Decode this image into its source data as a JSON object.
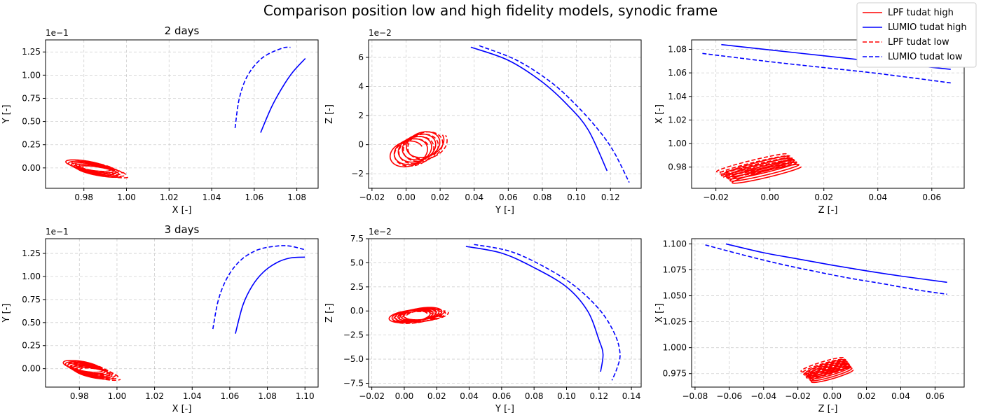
{
  "figure": {
    "title": "Comparison position low and high fidelity models, synodic frame"
  },
  "legend": {
    "placement": "top-right",
    "entries": [
      {
        "label": "LPF tudat high",
        "color": "#ff0000",
        "style": "solid"
      },
      {
        "label": "LUMIO tudat high",
        "color": "#0000ff",
        "style": "solid"
      },
      {
        "label": "LPF tudat low",
        "color": "#ff0000",
        "style": "dashed"
      },
      {
        "label": "LUMIO tudat low",
        "color": "#0000ff",
        "style": "dashed"
      }
    ]
  },
  "chart_data": [
    {
      "type": "line",
      "title": "2 days",
      "xlabel": "X [-]",
      "ylabel": "Y [-]",
      "offset_text": "1e−1",
      "grid": true,
      "xlim": [
        0.962,
        1.09
      ],
      "ylim": [
        -0.022,
        0.138
      ],
      "xticks": [
        0.98,
        1.0,
        1.02,
        1.04,
        1.06,
        1.08
      ],
      "xtick_labels": [
        "0.98",
        "1.00",
        "1.02",
        "1.04",
        "1.06",
        "1.08"
      ],
      "yticks": [
        0.0,
        0.025,
        0.05,
        0.075,
        0.1,
        0.125
      ],
      "ytick_labels": [
        "0.00",
        "0.25",
        "0.50",
        "0.75",
        "1.00",
        "1.25"
      ],
      "series": [
        {
          "name": "LUMIO tudat high",
          "color": "#0000ff",
          "style": "solid",
          "points": [
            [
              1.063,
              0.038
            ],
            [
              1.068,
              0.065
            ],
            [
              1.073,
              0.086
            ],
            [
              1.078,
              0.103
            ],
            [
              1.084,
              0.118
            ]
          ]
        },
        {
          "name": "LUMIO tudat low",
          "color": "#0000ff",
          "style": "dashed",
          "points": [
            [
              1.051,
              0.043
            ],
            [
              1.053,
              0.075
            ],
            [
              1.057,
              0.1
            ],
            [
              1.064,
              0.119
            ],
            [
              1.073,
              0.129
            ],
            [
              1.077,
              0.13
            ]
          ]
        },
        {
          "name": "LPF tudat high",
          "color": "#ff0000",
          "style": "solid",
          "kind": "orbit",
          "orbit": {
            "cx": 0.981,
            "cy": 0.0035,
            "a": 0.011,
            "b": 0.004,
            "rot": -0.42,
            "loops": 5,
            "drift": [
              0.0013,
              -0.0016
            ]
          }
        },
        {
          "name": "LPF tudat low",
          "color": "#ff0000",
          "style": "dashed",
          "kind": "orbit",
          "orbit": {
            "cx": 0.984,
            "cy": 0.002,
            "a": 0.0115,
            "b": 0.0038,
            "rot": -0.45,
            "loops": 4,
            "drift": [
              0.0017,
              -0.0017
            ]
          }
        }
      ]
    },
    {
      "type": "line",
      "title": "",
      "xlabel": "Y [-]",
      "ylabel": "Z [-]",
      "offset_text": "1e−2",
      "grid": true,
      "xlim": [
        -0.022,
        0.138
      ],
      "ylim": [
        -0.03,
        0.072
      ],
      "xticks": [
        -0.02,
        0.0,
        0.02,
        0.04,
        0.06,
        0.08,
        0.1,
        0.12
      ],
      "xtick_labels": [
        "−0.02",
        "0.00",
        "0.02",
        "0.04",
        "0.06",
        "0.08",
        "0.10",
        "0.12"
      ],
      "yticks": [
        -0.02,
        0.0,
        0.02,
        0.04,
        0.06
      ],
      "ytick_labels": [
        "−2",
        "0",
        "2",
        "4",
        "6"
      ],
      "series": [
        {
          "name": "LUMIO tudat high",
          "color": "#0000ff",
          "style": "solid",
          "points": [
            [
              0.038,
              0.067
            ],
            [
              0.06,
              0.058
            ],
            [
              0.08,
              0.043
            ],
            [
              0.095,
              0.027
            ],
            [
              0.107,
              0.01
            ],
            [
              0.118,
              -0.018
            ]
          ]
        },
        {
          "name": "LUMIO tudat low",
          "color": "#0000ff",
          "style": "dashed",
          "points": [
            [
              0.043,
              0.068
            ],
            [
              0.065,
              0.058
            ],
            [
              0.085,
              0.043
            ],
            [
              0.1,
              0.027
            ],
            [
              0.113,
              0.01
            ],
            [
              0.122,
              -0.005
            ],
            [
              0.131,
              -0.026
            ]
          ]
        },
        {
          "name": "LPF tudat high",
          "color": "#ff0000",
          "style": "solid",
          "kind": "orbit",
          "orbit": {
            "cx": 0.0,
            "cy": -0.007,
            "a": 0.011,
            "b": 0.0085,
            "rot": 0.55,
            "loops": 5,
            "drift": [
              0.0024,
              0.0016
            ]
          }
        },
        {
          "name": "LPF tudat low",
          "color": "#ff0000",
          "style": "dashed",
          "kind": "orbit",
          "orbit": {
            "cx": 0.003,
            "cy": -0.006,
            "a": 0.0115,
            "b": 0.009,
            "rot": 0.55,
            "loops": 4,
            "drift": [
              0.0026,
              0.0016
            ]
          }
        }
      ]
    },
    {
      "type": "line",
      "title": "",
      "xlabel": "Z [-]",
      "ylabel": "X [-]",
      "offset_text": "",
      "grid": true,
      "xlim": [
        -0.029,
        0.072
      ],
      "ylim": [
        0.962,
        1.088
      ],
      "xticks": [
        -0.02,
        0.0,
        0.02,
        0.04,
        0.06
      ],
      "xtick_labels": [
        "−0.02",
        "0.00",
        "0.02",
        "0.04",
        "0.06"
      ],
      "yticks": [
        0.98,
        1.0,
        1.02,
        1.04,
        1.06,
        1.08
      ],
      "ytick_labels": [
        "0.98",
        "1.00",
        "1.02",
        "1.04",
        "1.06",
        "1.08"
      ],
      "series": [
        {
          "name": "LUMIO tudat high",
          "color": "#0000ff",
          "style": "solid",
          "points": [
            [
              -0.018,
              1.084
            ],
            [
              0.0,
              1.0795
            ],
            [
              0.02,
              1.0745
            ],
            [
              0.04,
              1.0695
            ],
            [
              0.067,
              1.063
            ]
          ]
        },
        {
          "name": "LUMIO tudat low",
          "color": "#0000ff",
          "style": "dashed",
          "points": [
            [
              -0.025,
              1.0765
            ],
            [
              0.0,
              1.0695
            ],
            [
              0.02,
              1.0645
            ],
            [
              0.04,
              1.0595
            ],
            [
              0.067,
              1.0515
            ]
          ]
        },
        {
          "name": "LPF tudat high",
          "color": "#ff0000",
          "style": "solid",
          "kind": "orbit",
          "orbit": {
            "cx": -0.005,
            "cy": 0.982,
            "a": 0.0145,
            "b": 0.002,
            "rot": 0.53,
            "loops": 5,
            "drift": [
              0.0008,
              -0.0018
            ]
          }
        },
        {
          "name": "LPF tudat low",
          "color": "#ff0000",
          "style": "dashed",
          "kind": "orbit",
          "orbit": {
            "cx": -0.007,
            "cy": 0.984,
            "a": 0.015,
            "b": 0.0018,
            "rot": 0.5,
            "loops": 4,
            "drift": [
              0.0009,
              -0.0016
            ]
          }
        }
      ]
    },
    {
      "type": "line",
      "title": "3 days",
      "xlabel": "X [-]",
      "ylabel": "Y [-]",
      "offset_text": "1e−1",
      "grid": true,
      "xlim": [
        0.962,
        1.107
      ],
      "ylim": [
        -0.02,
        0.141
      ],
      "xticks": [
        0.98,
        1.0,
        1.02,
        1.04,
        1.06,
        1.08,
        1.1
      ],
      "xtick_labels": [
        "0.98",
        "1.00",
        "1.02",
        "1.04",
        "1.06",
        "1.08",
        "1.10"
      ],
      "yticks": [
        0.0,
        0.025,
        0.05,
        0.075,
        0.1,
        0.125
      ],
      "ytick_labels": [
        "0.00",
        "0.25",
        "0.50",
        "0.75",
        "1.00",
        "1.25"
      ],
      "series": [
        {
          "name": "LUMIO tudat high",
          "color": "#0000ff",
          "style": "solid",
          "points": [
            [
              1.063,
              0.038
            ],
            [
              1.067,
              0.069
            ],
            [
              1.072,
              0.09
            ],
            [
              1.078,
              0.105
            ],
            [
              1.085,
              0.115
            ],
            [
              1.092,
              0.12
            ],
            [
              1.1,
              0.121
            ]
          ]
        },
        {
          "name": "LUMIO tudat low",
          "color": "#0000ff",
          "style": "dashed",
          "points": [
            [
              1.051,
              0.043
            ],
            [
              1.054,
              0.075
            ],
            [
              1.059,
              0.1
            ],
            [
              1.066,
              0.118
            ],
            [
              1.075,
              0.129
            ],
            [
              1.085,
              0.133
            ],
            [
              1.092,
              0.133
            ],
            [
              1.1,
              0.129
            ]
          ]
        },
        {
          "name": "LPF tudat high",
          "color": "#ff0000",
          "style": "solid",
          "kind": "orbit",
          "orbit": {
            "cx": 0.981,
            "cy": 0.0035,
            "a": 0.011,
            "b": 0.0045,
            "rot": -0.42,
            "loops": 6,
            "drift": [
              0.0012,
              -0.0015
            ]
          }
        },
        {
          "name": "LPF tudat low",
          "color": "#ff0000",
          "style": "dashed",
          "kind": "orbit",
          "orbit": {
            "cx": 0.984,
            "cy": 0.0015,
            "a": 0.0115,
            "b": 0.0042,
            "rot": -0.45,
            "loops": 5,
            "drift": [
              0.0015,
              -0.0016
            ]
          }
        }
      ]
    },
    {
      "type": "line",
      "title": "",
      "xlabel": "Y [-]",
      "ylabel": "Z [-]",
      "offset_text": "1e−2",
      "grid": true,
      "xlim": [
        -0.022,
        0.146
      ],
      "ylim": [
        -0.079,
        0.075
      ],
      "xticks": [
        -0.02,
        0.0,
        0.02,
        0.04,
        0.06,
        0.08,
        0.1,
        0.12,
        0.14
      ],
      "xtick_labels": [
        "−0.02",
        "0.00",
        "0.02",
        "0.04",
        "0.06",
        "0.08",
        "0.10",
        "0.12",
        "0.14"
      ],
      "yticks": [
        -0.075,
        -0.05,
        -0.025,
        0.0,
        0.025,
        0.05,
        0.075
      ],
      "ytick_labels": [
        "−7.5",
        "−5.0",
        "−2.5",
        "0.0",
        "2.5",
        "5.0",
        "7.5"
      ],
      "series": [
        {
          "name": "LUMIO tudat high",
          "color": "#0000ff",
          "style": "solid",
          "points": [
            [
              0.038,
              0.067
            ],
            [
              0.06,
              0.06
            ],
            [
              0.08,
              0.045
            ],
            [
              0.1,
              0.025
            ],
            [
              0.113,
              0.0
            ],
            [
              0.12,
              -0.03
            ],
            [
              0.1225,
              -0.045
            ],
            [
              0.121,
              -0.063
            ]
          ]
        },
        {
          "name": "LUMIO tudat low",
          "color": "#0000ff",
          "style": "dashed",
          "points": [
            [
              0.043,
              0.069
            ],
            [
              0.065,
              0.062
            ],
            [
              0.085,
              0.047
            ],
            [
              0.105,
              0.026
            ],
            [
              0.121,
              0.0
            ],
            [
              0.13,
              -0.025
            ],
            [
              0.133,
              -0.045
            ],
            [
              0.131,
              -0.06
            ],
            [
              0.128,
              -0.072
            ]
          ]
        },
        {
          "name": "LPF tudat high",
          "color": "#ff0000",
          "style": "solid",
          "kind": "orbit",
          "orbit": {
            "cx": 0.002,
            "cy": -0.006,
            "a": 0.0125,
            "b": 0.006,
            "rot": 0.25,
            "loops": 6,
            "drift": [
              0.0018,
              0.0006
            ]
          }
        },
        {
          "name": "LPF tudat low",
          "color": "#ff0000",
          "style": "dashed",
          "kind": "orbit",
          "orbit": {
            "cx": 0.005,
            "cy": -0.007,
            "a": 0.013,
            "b": 0.0058,
            "rot": 0.22,
            "loops": 5,
            "drift": [
              0.0019,
              0.0006
            ]
          }
        }
      ]
    },
    {
      "type": "line",
      "title": "",
      "xlabel": "Z [-]",
      "ylabel": "X [-]",
      "offset_text": "",
      "grid": true,
      "xlim": [
        -0.082,
        0.077
      ],
      "ylim": [
        0.962,
        1.105
      ],
      "xticks": [
        -0.08,
        -0.06,
        -0.04,
        -0.02,
        0.0,
        0.02,
        0.04,
        0.06
      ],
      "xtick_labels": [
        "−0.08",
        "−0.06",
        "−0.04",
        "−0.02",
        "0.00",
        "0.02",
        "0.04",
        "0.06"
      ],
      "yticks": [
        0.975,
        1.0,
        1.025,
        1.05,
        1.075,
        1.1
      ],
      "ytick_labels": [
        "0.975",
        "1.000",
        "1.025",
        "1.050",
        "1.075",
        "1.100"
      ],
      "series": [
        {
          "name": "LUMIO tudat high",
          "color": "#0000ff",
          "style": "solid",
          "points": [
            [
              -0.062,
              1.1
            ],
            [
              -0.04,
              1.0915
            ],
            [
              -0.02,
              1.0855
            ],
            [
              0.0,
              1.0795
            ],
            [
              0.02,
              1.074
            ],
            [
              0.04,
              1.069
            ],
            [
              0.067,
              1.063
            ]
          ]
        },
        {
          "name": "LUMIO tudat low",
          "color": "#0000ff",
          "style": "dashed",
          "points": [
            [
              -0.074,
              1.099
            ],
            [
              -0.05,
              1.0885
            ],
            [
              -0.03,
              1.0805
            ],
            [
              -0.01,
              1.0735
            ],
            [
              0.01,
              1.067
            ],
            [
              0.03,
              1.0615
            ],
            [
              0.05,
              1.0555
            ],
            [
              0.067,
              1.0515
            ]
          ]
        },
        {
          "name": "LPF tudat high",
          "color": "#ff0000",
          "style": "solid",
          "kind": "orbit",
          "orbit": {
            "cx": -0.004,
            "cy": 0.982,
            "a": 0.0135,
            "b": 0.0025,
            "rot": 0.48,
            "loops": 6,
            "drift": [
              0.0007,
              -0.0016
            ]
          }
        },
        {
          "name": "LPF tudat low",
          "color": "#ff0000",
          "style": "dashed",
          "kind": "orbit",
          "orbit": {
            "cx": -0.006,
            "cy": 0.984,
            "a": 0.014,
            "b": 0.0024,
            "rot": 0.46,
            "loops": 5,
            "drift": [
              0.0008,
              -0.0015
            ]
          }
        }
      ]
    }
  ]
}
